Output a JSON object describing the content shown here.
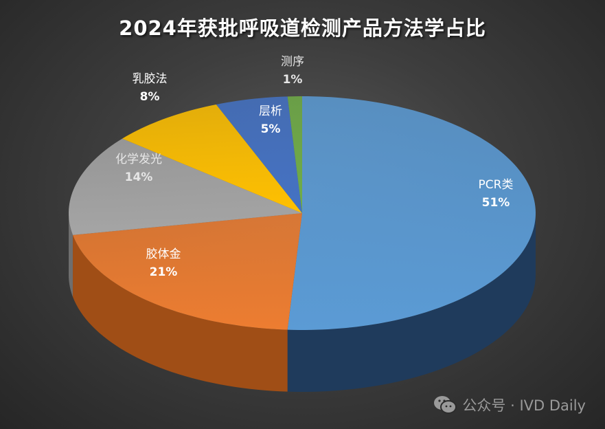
{
  "title": "2024年获批呼吸道检测产品方法学占比",
  "watermark": {
    "icon": "wechat-icon",
    "text": "公众号 · IVD Daily"
  },
  "chart_data": {
    "type": "pie",
    "style": "3d",
    "title": "2024年获批呼吸道检测产品方法学占比",
    "categories": [
      "PCR类",
      "胶体金",
      "化学发光",
      "乳胶法",
      "层析",
      "测序"
    ],
    "values": [
      51,
      21,
      14,
      8,
      5,
      1
    ],
    "labels": [
      "51%",
      "21%",
      "14%",
      "8%",
      "5%",
      "1%"
    ],
    "colors": [
      "#5B9BD5",
      "#ED7D31",
      "#A5A5A5",
      "#FFC000",
      "#4472C4",
      "#70AD47"
    ],
    "side_colors": [
      "#1F3B5C",
      "#A04E16",
      "#6E6E6E",
      "#A67C00",
      "#2B4A80",
      "#44702A"
    ],
    "label_colors": [
      "#ffffff",
      "#ffffff",
      "#e6e6e6",
      "#ffffff",
      "#ffffff",
      "#e6e6e6"
    ],
    "start_angle_deg": 0,
    "direction": "clockwise-from-top",
    "legend": "none",
    "data_labels": "category and percentage"
  }
}
